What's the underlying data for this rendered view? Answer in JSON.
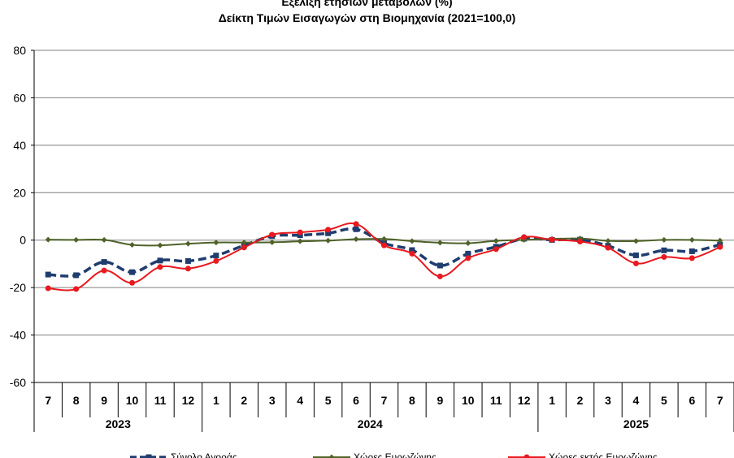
{
  "chart_data": {
    "type": "line",
    "title": "Εξέλιξη ετήσιων μεταβολών (%)",
    "subtitle": "Δείκτη Τιμών Εισαγωγών στη Βιομηχανία (2021=100,0)",
    "ylim": [
      -60,
      80
    ],
    "yticks": [
      -60,
      -40,
      -20,
      0,
      20,
      40,
      60,
      80
    ],
    "grid": true,
    "legend_position": "bottom",
    "categories": [
      "7",
      "8",
      "9",
      "10",
      "11",
      "12",
      "1",
      "2",
      "3",
      "4",
      "5",
      "6",
      "7",
      "8",
      "9",
      "10",
      "11",
      "12",
      "1",
      "2",
      "3",
      "4",
      "5",
      "6",
      "7"
    ],
    "year_groups": [
      {
        "label": "2023",
        "count": 6
      },
      {
        "label": "2024",
        "count": 12
      },
      {
        "label": "2025",
        "count": 7
      }
    ],
    "series": [
      {
        "name": "Σύνολο Αγοράς",
        "color": "#1f3d6e",
        "style": "dashed-square",
        "values": [
          -14.5,
          -14.8,
          -9.2,
          -13.5,
          -8.6,
          -8.8,
          -6.5,
          -2.2,
          1.7,
          2.1,
          2.9,
          4.6,
          -1.3,
          -4.2,
          -10.7,
          -5.7,
          -2.8,
          0.6,
          0.1,
          0.2,
          -2.4,
          -6.4,
          -4.3,
          -4.7,
          -1.9
        ]
      },
      {
        "name": "Χώρες Ευρωζώνης",
        "color": "#4f6228",
        "style": "solid-diamond",
        "values": [
          0.2,
          0.1,
          0.1,
          -2.0,
          -2.2,
          -1.5,
          -1.0,
          -1.0,
          -0.9,
          -0.5,
          -0.2,
          0.4,
          0.5,
          -0.4,
          -1.1,
          -1.3,
          -0.3,
          0.1,
          0.5,
          0.7,
          -0.3,
          -0.4,
          0.1,
          0.1,
          -0.2
        ]
      },
      {
        "name": "Χώρες εκτός Ευρωζώνης",
        "color": "#e8191f",
        "style": "solid-circle",
        "values": [
          -20.3,
          -20.6,
          -12.8,
          -18.0,
          -11.3,
          -12.0,
          -8.8,
          -3.1,
          2.3,
          3.3,
          4.4,
          6.8,
          -2.2,
          -5.7,
          -15.3,
          -7.6,
          -3.8,
          1.3,
          0.2,
          -0.6,
          -3.2,
          -9.8,
          -7.1,
          -7.6,
          -2.9
        ]
      }
    ]
  }
}
